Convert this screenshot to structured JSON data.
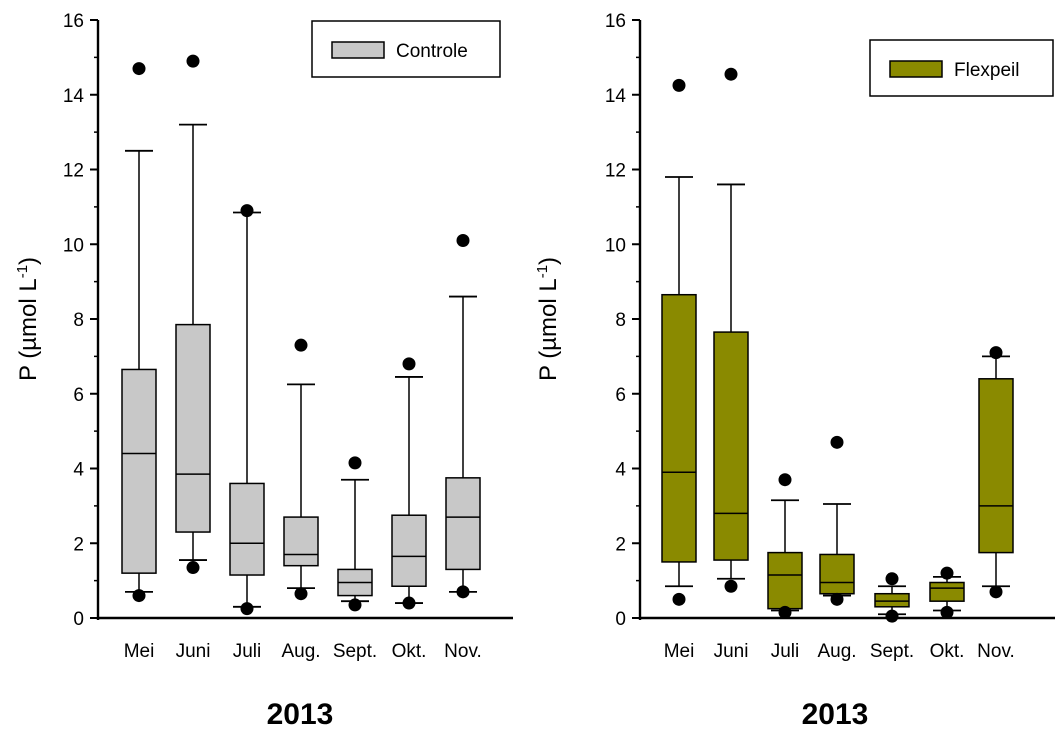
{
  "chart_data": [
    {
      "type": "box",
      "xlabel": "2013",
      "ylabel": "P (µmol L",
      "ylabel_sup": "-1",
      "ylabel_end": ")",
      "ylim": [
        0,
        16
      ],
      "yticks": [
        "0",
        "2",
        "4",
        "6",
        "8",
        "10",
        "12",
        "14",
        "16"
      ],
      "categories": [
        "Mei",
        "Juni",
        "Juli",
        "Aug.",
        "Sept.",
        "Okt.",
        "Nov."
      ],
      "legend": {
        "label": "Controle",
        "position": "top-right"
      },
      "fill_color": "#c8c8c8",
      "stroke_color": "#000000",
      "series": [
        {
          "name": "Controle",
          "boxes": [
            {
              "whisker_low": 0.7,
              "q1": 1.2,
              "median": 4.4,
              "q3": 6.65,
              "whisker_high": 12.5,
              "outliers": [
                0.6,
                14.7
              ]
            },
            {
              "whisker_low": 1.55,
              "q1": 2.3,
              "median": 3.85,
              "q3": 7.85,
              "whisker_high": 13.2,
              "outliers": [
                1.35,
                14.9
              ]
            },
            {
              "whisker_low": 0.3,
              "q1": 1.15,
              "median": 2.0,
              "q3": 3.6,
              "whisker_high": 10.85,
              "outliers": [
                0.25,
                10.9
              ]
            },
            {
              "whisker_low": 0.8,
              "q1": 1.4,
              "median": 1.7,
              "q3": 2.7,
              "whisker_high": 6.25,
              "outliers": [
                0.65,
                7.3
              ]
            },
            {
              "whisker_low": 0.45,
              "q1": 0.6,
              "median": 0.95,
              "q3": 1.3,
              "whisker_high": 3.7,
              "outliers": [
                0.35,
                4.15
              ]
            },
            {
              "whisker_low": 0.4,
              "q1": 0.85,
              "median": 1.65,
              "q3": 2.75,
              "whisker_high": 6.45,
              "outliers": [
                0.4,
                6.8
              ]
            },
            {
              "whisker_low": 0.7,
              "q1": 1.3,
              "median": 2.7,
              "q3": 3.75,
              "whisker_high": 8.6,
              "outliers": [
                0.7,
                10.1
              ]
            }
          ]
        }
      ]
    },
    {
      "type": "box",
      "xlabel": "2013",
      "ylabel": "P (µmol L",
      "ylabel_sup": "-1",
      "ylabel_end": ")",
      "ylim": [
        0,
        16
      ],
      "yticks": [
        "0",
        "2",
        "4",
        "6",
        "8",
        "10",
        "12",
        "14",
        "16"
      ],
      "categories": [
        "Mei",
        "Juni",
        "Juli",
        "Aug.",
        "Sept.",
        "Okt.",
        "Nov."
      ],
      "legend": {
        "label": "Flexpeil",
        "position": "top-right"
      },
      "fill_color": "#8a8a00",
      "stroke_color": "#000000",
      "series": [
        {
          "name": "Flexpeil",
          "boxes": [
            {
              "whisker_low": 0.85,
              "q1": 1.5,
              "median": 3.9,
              "q3": 8.65,
              "whisker_high": 11.8,
              "outliers": [
                0.5,
                14.25
              ]
            },
            {
              "whisker_low": 1.05,
              "q1": 1.55,
              "median": 2.8,
              "q3": 7.65,
              "whisker_high": 11.6,
              "outliers": [
                0.85,
                14.55
              ]
            },
            {
              "whisker_low": 0.2,
              "q1": 0.25,
              "median": 1.15,
              "q3": 1.75,
              "whisker_high": 3.15,
              "outliers": [
                0.15,
                3.7
              ]
            },
            {
              "whisker_low": 0.6,
              "q1": 0.65,
              "median": 0.95,
              "q3": 1.7,
              "whisker_high": 3.05,
              "outliers": [
                0.5,
                4.7
              ]
            },
            {
              "whisker_low": 0.1,
              "q1": 0.3,
              "median": 0.45,
              "q3": 0.65,
              "whisker_high": 0.85,
              "outliers": [
                0.05,
                1.05
              ]
            },
            {
              "whisker_low": 0.2,
              "q1": 0.45,
              "median": 0.8,
              "q3": 0.95,
              "whisker_high": 1.1,
              "outliers": [
                0.15,
                1.2
              ]
            },
            {
              "whisker_low": 0.85,
              "q1": 1.75,
              "median": 3.0,
              "q3": 6.4,
              "whisker_high": 7.0,
              "outliers": [
                0.7,
                7.1
              ]
            }
          ]
        }
      ]
    }
  ]
}
